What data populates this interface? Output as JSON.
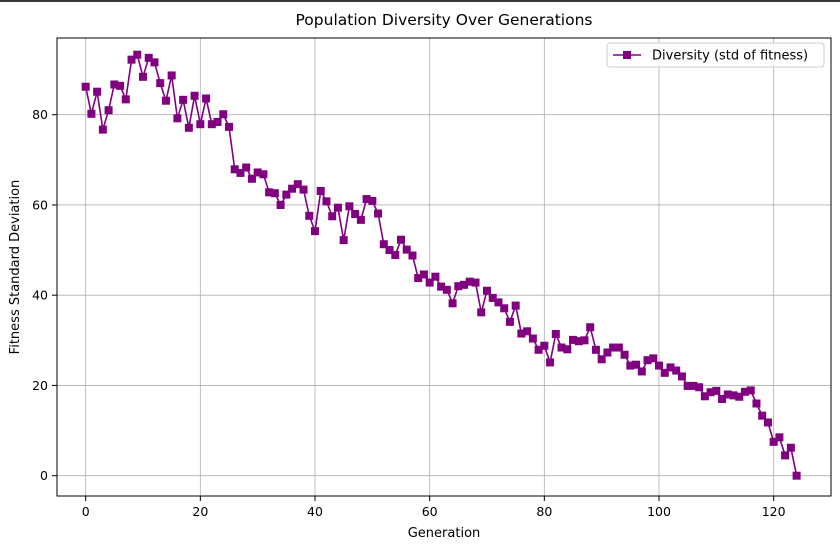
{
  "chart_data": {
    "type": "line",
    "title": "Population Diversity Over Generations",
    "xlabel": "Generation",
    "ylabel": "Fitness Standard Deviation",
    "xlim": [
      -5,
      130
    ],
    "ylim": [
      -4.5,
      97
    ],
    "xticks": [
      0,
      20,
      40,
      60,
      80,
      100,
      120
    ],
    "yticks": [
      0,
      20,
      40,
      60,
      80
    ],
    "grid": true,
    "legend_position": "top-right",
    "series": [
      {
        "name": "Diversity (std of fitness)",
        "color": "#800080",
        "marker": "square",
        "x": [
          0,
          1,
          2,
          3,
          4,
          5,
          6,
          7,
          8,
          9,
          10,
          11,
          12,
          13,
          14,
          15,
          16,
          17,
          18,
          19,
          20,
          21,
          22,
          23,
          24,
          25,
          26,
          27,
          28,
          29,
          30,
          31,
          32,
          33,
          34,
          35,
          36,
          37,
          38,
          39,
          40,
          41,
          42,
          43,
          44,
          45,
          46,
          47,
          48,
          49,
          50,
          51,
          52,
          53,
          54,
          55,
          56,
          57,
          58,
          59,
          60,
          61,
          62,
          63,
          64,
          65,
          66,
          67,
          68,
          69,
          70,
          71,
          72,
          73,
          74,
          75,
          76,
          77,
          78,
          79,
          80,
          81,
          82,
          83,
          84,
          85,
          86,
          87,
          88,
          89,
          90,
          91,
          92,
          93,
          94,
          95,
          96,
          97,
          98,
          99,
          100,
          101,
          102,
          103,
          104,
          105,
          106,
          107,
          108,
          109,
          110,
          111,
          112,
          113,
          114,
          115,
          116,
          117,
          118,
          119,
          120,
          121,
          122,
          123,
          124
        ],
        "y": [
          86.2,
          80.2,
          85.1,
          76.7,
          81.0,
          86.7,
          86.4,
          83.4,
          92.2,
          93.3,
          88.4,
          92.6,
          91.6,
          87.0,
          83.1,
          88.7,
          79.2,
          83.3,
          77.1,
          84.2,
          77.9,
          83.6,
          77.9,
          78.4,
          80.1,
          77.3,
          67.9,
          67.1,
          68.3,
          65.8,
          67.2,
          66.8,
          62.8,
          62.6,
          60.0,
          62.3,
          63.6,
          64.6,
          63.4,
          57.6,
          54.2,
          63.1,
          60.8,
          57.5,
          59.4,
          52.2,
          59.7,
          58.0,
          56.7,
          61.3,
          60.9,
          58.1,
          51.3,
          50.0,
          48.9,
          52.3,
          50.1,
          48.8,
          43.8,
          44.6,
          42.8,
          44.1,
          41.9,
          41.2,
          38.2,
          42.0,
          42.3,
          43.0,
          42.8,
          36.2,
          41.0,
          39.4,
          38.4,
          37.1,
          34.1,
          37.7,
          31.5,
          32.0,
          30.4,
          27.9,
          28.8,
          25.1,
          31.4,
          28.4,
          28.0,
          30.1,
          29.8,
          30.0,
          32.9,
          27.9,
          25.8,
          27.3,
          28.4,
          28.4,
          26.8,
          24.4,
          24.6,
          23.1,
          25.6,
          26.0,
          24.4,
          22.8,
          24.0,
          23.3,
          22.0,
          19.9,
          19.9,
          19.6,
          17.6,
          18.5,
          18.8,
          17.0,
          18.0,
          17.8,
          17.5,
          18.6,
          18.9,
          16.0,
          13.3,
          11.8,
          7.5,
          8.5,
          4.5,
          6.2,
          0.0
        ]
      }
    ]
  }
}
